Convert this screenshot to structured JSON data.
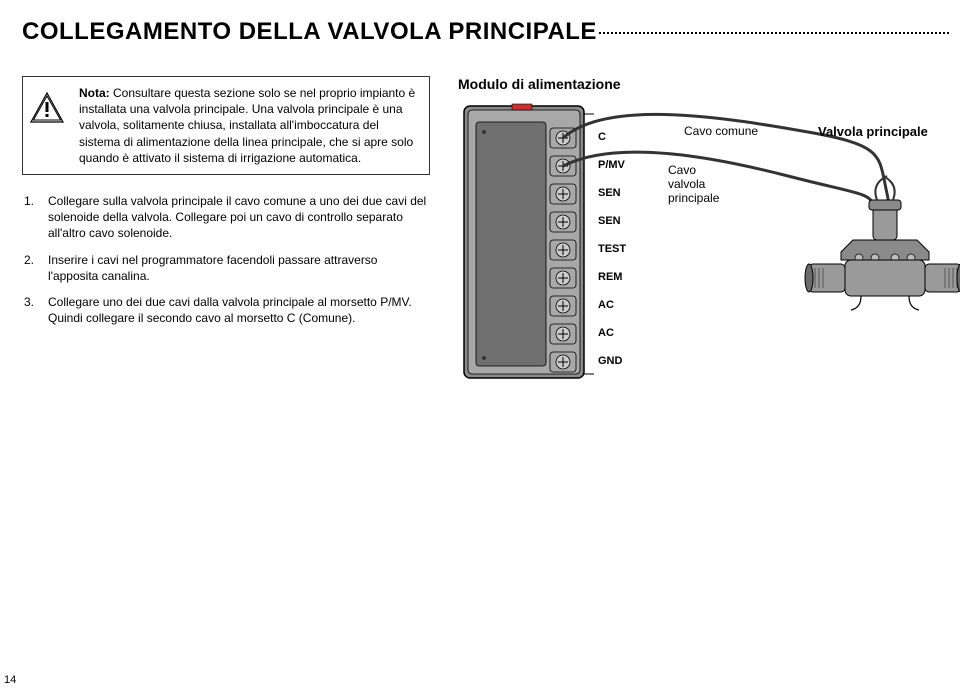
{
  "title": "COLLEGAMENTO DELLA VALVOLA PRINCIPALE",
  "note_label": "Nota:",
  "note_text": " Consultare questa sezione solo se nel proprio impianto è installata una valvola principale. Una valvola principale è una valvola, solitamente chiusa, installata all'imboccatura del sistema di alimentazione della linea principale, che si apre solo quando è attivato il sistema di irrigazione automatica.",
  "steps": [
    {
      "n": "1.",
      "text": "Collegare sulla valvola principale il cavo comune a uno dei due cavi del solenoide della valvola. Collegare poi un cavo di controllo separato all'altro cavo solenoide."
    },
    {
      "n": "2.",
      "text": "Inserire i cavi nel programmatore facendoli passare attraverso l'apposita canalina."
    },
    {
      "n": "3.",
      "text": "Collegare uno dei due cavi dalla valvola principale al morsetto P/MV. Quindi collegare il secondo cavo al morsetto C (Comune)."
    }
  ],
  "module_title": "Modulo di alimentazione",
  "terminals": [
    "C",
    "P/MV",
    "SEN",
    "SEN",
    "TEST",
    "REM",
    "AC",
    "AC",
    "GND"
  ],
  "labels": {
    "common_wire": "Cavo comune",
    "valve_wire1": "Cavo",
    "valve_wire2": "valvola",
    "valve_wire3": "principale",
    "main_valve": "Valvola principale"
  },
  "colors": {
    "body": "#8a8a8a",
    "body_light": "#a8a8a8",
    "screw": "#cccccc",
    "wire": "#333333",
    "valve": "#9a9a9a",
    "valve_dark": "#6b6b6b"
  },
  "page_number": "14"
}
